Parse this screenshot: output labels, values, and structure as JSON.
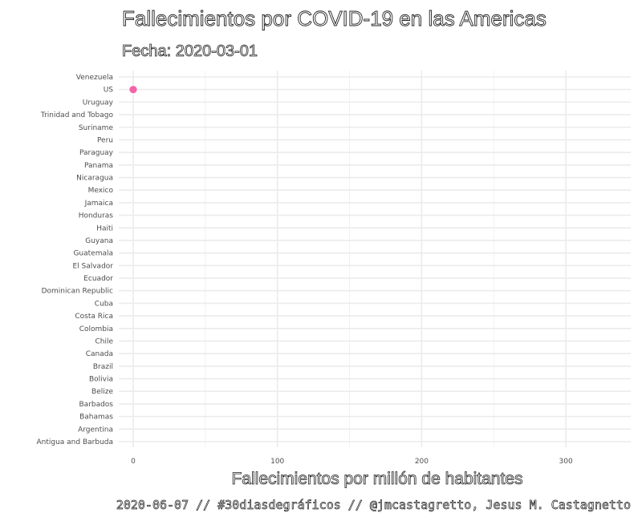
{
  "chart_data": {
    "type": "scatter",
    "title": "Fallecimientos por COVID-19 en las Americas",
    "subtitle": "Fecha: 2020-03-01",
    "xlabel": "Fallecimientos por millón de habitantes",
    "ylabel": "",
    "caption": "2020-06-07 // #30diasdegráficos // @jmcastagretto, Jesus M. Castagnetto",
    "xlim": [
      -10,
      345
    ],
    "xticks": [
      0,
      100,
      200,
      300
    ],
    "grid": true,
    "point_color": "#F564A9",
    "categories": [
      "Antigua and Barbuda",
      "Argentina",
      "Bahamas",
      "Barbados",
      "Belize",
      "Bolivia",
      "Brazil",
      "Canada",
      "Chile",
      "Colombia",
      "Costa Rica",
      "Cuba",
      "Dominican Republic",
      "Ecuador",
      "El Salvador",
      "Guatemala",
      "Guyana",
      "Haiti",
      "Honduras",
      "Jamaica",
      "Mexico",
      "Nicaragua",
      "Panama",
      "Paraguay",
      "Peru",
      "Suriname",
      "Trinidad and Tobago",
      "Uruguay",
      "US",
      "Venezuela"
    ],
    "points": [
      {
        "category": "US",
        "value": 0
      }
    ]
  }
}
